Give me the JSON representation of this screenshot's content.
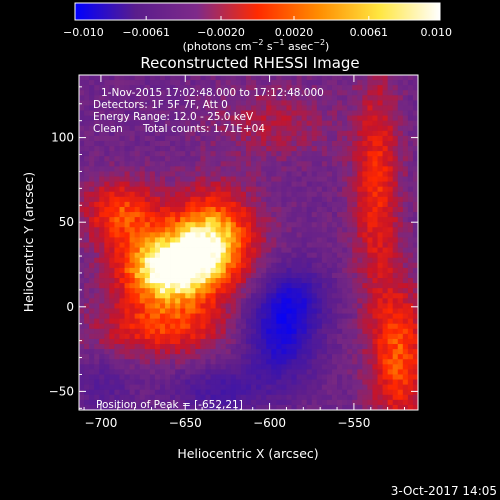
{
  "chart_data": {
    "type": "heatmap",
    "title": "Reconstructed RHESSI Image",
    "xlabel": "Heliocentric X (arcsec)",
    "ylabel": "Heliocentric Y (arcsec)",
    "xlim": [
      -713,
      -512
    ],
    "ylim": [
      -61,
      137
    ],
    "x_ticks": [
      -700,
      -650,
      -600,
      -550
    ],
    "x_tick_labels": [
      "−700",
      "−650",
      "−600",
      "−550"
    ],
    "y_ticks": [
      100,
      50,
      0,
      -50
    ],
    "y_tick_labels": [
      "100",
      "50",
      "0",
      "−50"
    ],
    "colorbar": {
      "range": [
        -0.01,
        0.01
      ],
      "ticks": [
        -0.01,
        -0.0061,
        -0.002,
        0.002,
        0.0061,
        0.01
      ],
      "tick_labels": [
        "−0.010",
        "−0.0061",
        "−0.0020",
        "0.0020",
        "0.0061",
        "0.010"
      ],
      "units_pre": "(photons cm",
      "units_sup1": "−2",
      "units_mid": " s",
      "units_sup2": "−1",
      "units_mid2": " asec",
      "units_sup3": "−2",
      "units_post": ")",
      "colormap": [
        "#0000ff",
        "#5a1d8c",
        "#7e2a8a",
        "#ff2a00",
        "#ff8c00",
        "#ffe640",
        "#ffffff"
      ]
    },
    "annotations": [
      "1-Nov-2015 17:02:48.000 to 17:12:48.000",
      "Detectors: 1F 5F 7F, Att 0",
      "Energy Range: 12.0 - 25.0 keV",
      "Clean",
      "Total counts: 1.71E+04"
    ],
    "peak_label": "Position of Peak = [-652,21]",
    "peak": [
      -652,
      21
    ],
    "sources": [
      {
        "x": -663,
        "y": 23,
        "amp": 1.05,
        "sx": 20,
        "sy": 16
      },
      {
        "x": -635,
        "y": 42,
        "amp": 0.85,
        "sx": 18,
        "sy": 20
      },
      {
        "x": -690,
        "y": 58,
        "amp": 0.55,
        "sx": 16,
        "sy": 14
      },
      {
        "x": -665,
        "y": -12,
        "amp": 0.45,
        "sx": 30,
        "sy": 12
      },
      {
        "x": -538,
        "y": 75,
        "amp": 0.5,
        "sx": 10,
        "sy": 45
      },
      {
        "x": -525,
        "y": -28,
        "amp": 0.6,
        "sx": 12,
        "sy": 30
      },
      {
        "x": -600,
        "y": 110,
        "amp": 0.25,
        "sx": 25,
        "sy": 15
      },
      {
        "x": -595,
        "y": -14,
        "amp": -0.8,
        "sx": 14,
        "sy": 18
      },
      {
        "x": -585,
        "y": 8,
        "amp": -0.45,
        "sx": 12,
        "sy": 12
      },
      {
        "x": -630,
        "y": -48,
        "amp": -0.35,
        "sx": 20,
        "sy": 10
      },
      {
        "x": -700,
        "y": -45,
        "amp": -0.2,
        "sx": 12,
        "sy": 12
      }
    ],
    "grid": false
  },
  "footer": {
    "date": "3-Oct-2017 14:05"
  }
}
